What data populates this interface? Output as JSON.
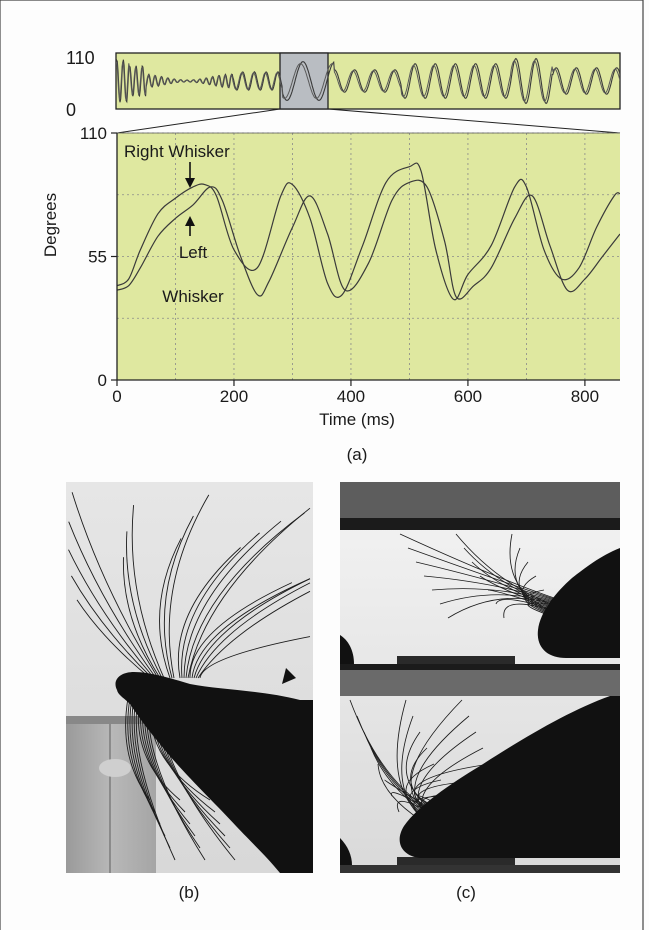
{
  "figure": {
    "panel_labels": {
      "a": "(a)",
      "b": "(b)",
      "c": "(c)"
    },
    "background_color": "#fdfdfd",
    "frame_color": "#444444"
  },
  "colors": {
    "plot_background": "#dfe8a0",
    "highlight_window": "#b9bdc2",
    "trace": "#3a3a3a",
    "grid": "#8a8a8a"
  },
  "chart_data": [
    {
      "type": "line",
      "name": "overview",
      "ylim": [
        0,
        110
      ],
      "yticks": [
        "110",
        "0"
      ],
      "x_range_ms": [
        0,
        3000
      ],
      "highlight_window_ms": [
        990,
        1290
      ],
      "series": [
        {
          "name": "Right Whisker",
          "style": "oscillation"
        },
        {
          "name": "Left Whisker",
          "style": "oscillation"
        }
      ]
    },
    {
      "type": "line",
      "name": "zoomed",
      "xlabel": "Time (ms)",
      "ylabel": "Degrees",
      "xlim": [
        0,
        860
      ],
      "ylim": [
        0,
        110
      ],
      "xticks": [
        0,
        200,
        400,
        600,
        800
      ],
      "xtick_labels": [
        "0",
        "200",
        "400",
        "600",
        "800"
      ],
      "yticks": [
        0,
        55,
        110
      ],
      "ytick_labels": [
        "0",
        "55",
        "110"
      ],
      "grid": true,
      "annotations": [
        {
          "text": "Right Whisker",
          "target_series": "Right Whisker"
        },
        {
          "text": "Left",
          "target_series": "Left Whisker"
        },
        {
          "text": "Whisker",
          "target_series": "Left Whisker"
        }
      ],
      "series": [
        {
          "name": "Right Whisker",
          "x": [
            0,
            20,
            40,
            70,
            100,
            130,
            150,
            170,
            200,
            240,
            280,
            300,
            330,
            360,
            385,
            420,
            460,
            500,
            520,
            545,
            575,
            600,
            640,
            680,
            700,
            730,
            760,
            790,
            820,
            850,
            860
          ],
          "y": [
            42,
            45,
            58,
            74,
            81,
            86,
            87,
            82,
            58,
            50,
            82,
            87,
            72,
            43,
            38,
            60,
            88,
            95,
            93,
            58,
            36,
            47,
            60,
            86,
            86,
            58,
            45,
            50,
            68,
            82,
            83
          ]
        },
        {
          "name": "Left Whisker",
          "x": [
            0,
            20,
            40,
            70,
            100,
            130,
            160,
            180,
            210,
            240,
            260,
            300,
            330,
            360,
            390,
            430,
            470,
            500,
            530,
            560,
            580,
            610,
            640,
            680,
            710,
            740,
            770,
            800,
            830,
            860
          ],
          "y": [
            40,
            42,
            50,
            64,
            72,
            78,
            86,
            80,
            56,
            38,
            44,
            68,
            82,
            65,
            40,
            52,
            80,
            88,
            86,
            62,
            37,
            42,
            50,
            72,
            82,
            60,
            40,
            45,
            55,
            65
          ]
        }
      ]
    }
  ]
}
